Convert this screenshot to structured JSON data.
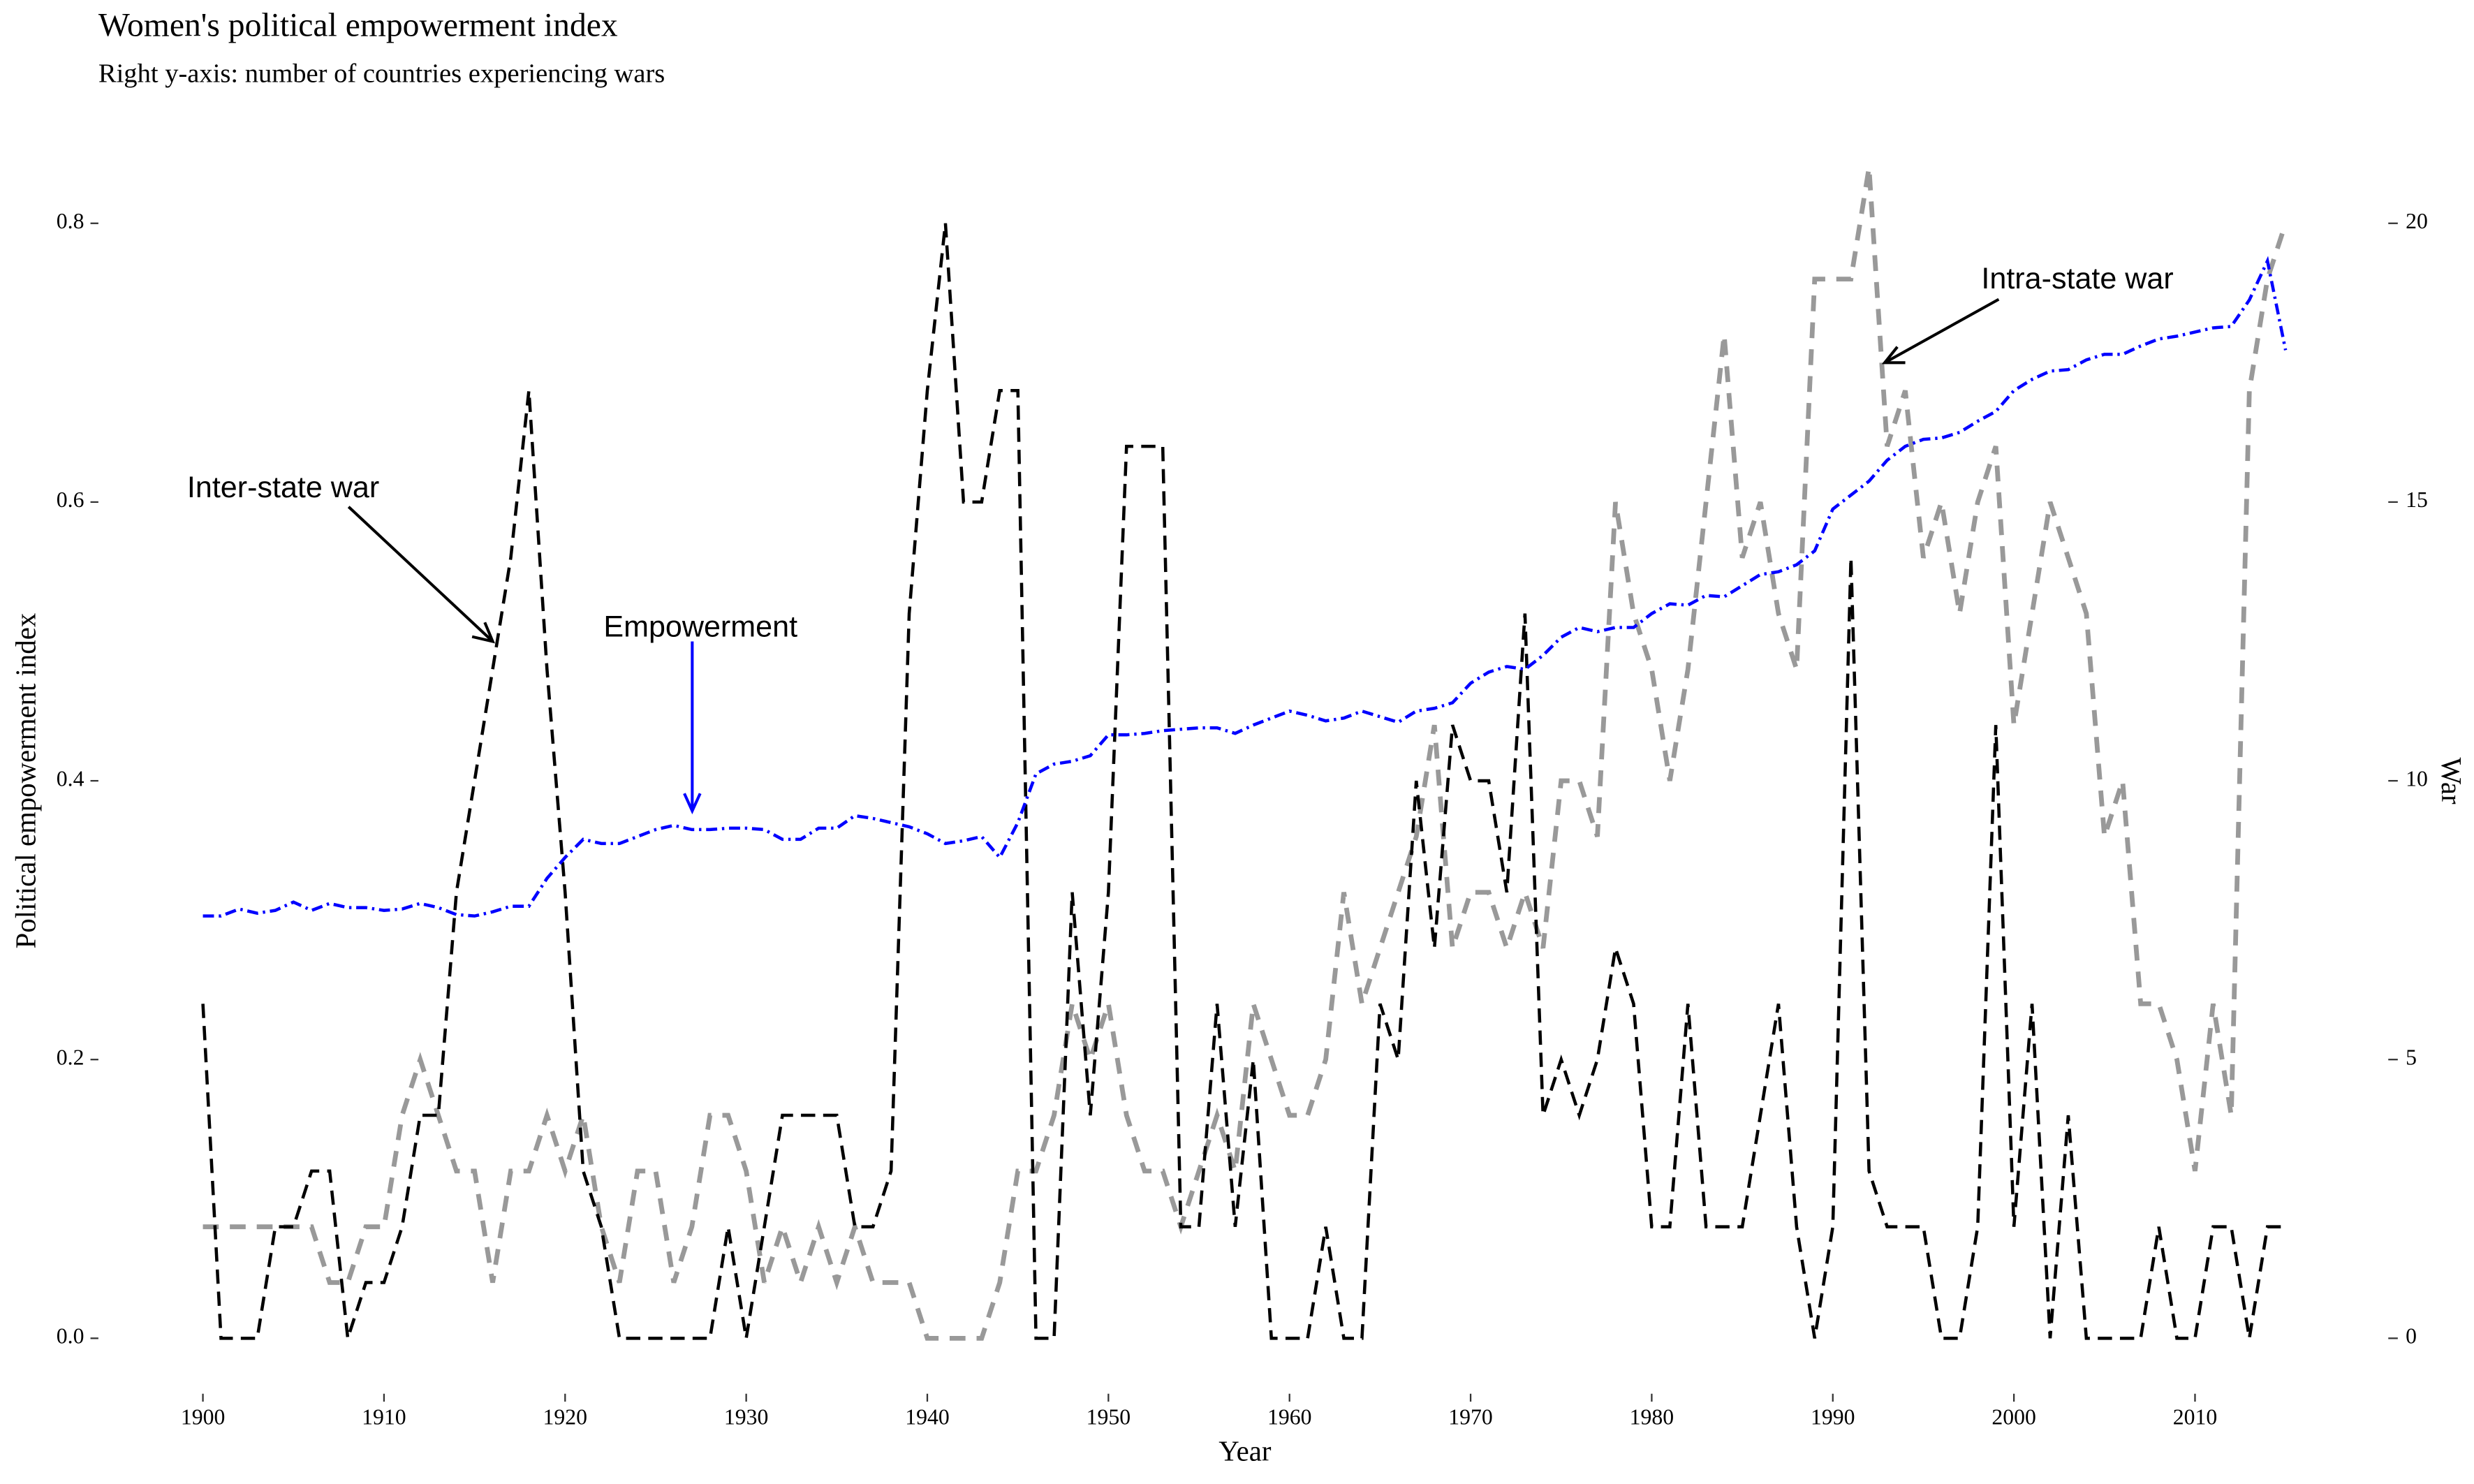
{
  "chart_data": {
    "type": "line",
    "title": "Women's political empowerment index",
    "subtitle": "Right y-axis: number of countries experiencing wars",
    "x_label": "Year",
    "y_label": "Political empowerment index",
    "y2_label": "War",
    "x": [
      1900,
      1901,
      1902,
      1903,
      1904,
      1905,
      1906,
      1907,
      1908,
      1909,
      1910,
      1911,
      1912,
      1913,
      1914,
      1915,
      1916,
      1917,
      1918,
      1919,
      1920,
      1921,
      1922,
      1923,
      1924,
      1925,
      1926,
      1927,
      1928,
      1929,
      1930,
      1931,
      1932,
      1933,
      1934,
      1935,
      1936,
      1937,
      1938,
      1939,
      1940,
      1941,
      1942,
      1943,
      1944,
      1945,
      1946,
      1947,
      1948,
      1949,
      1950,
      1951,
      1952,
      1953,
      1954,
      1955,
      1956,
      1957,
      1958,
      1959,
      1960,
      1961,
      1962,
      1963,
      1964,
      1965,
      1966,
      1967,
      1968,
      1969,
      1970,
      1971,
      1972,
      1973,
      1974,
      1975,
      1976,
      1977,
      1978,
      1979,
      1980,
      1981,
      1982,
      1983,
      1984,
      1985,
      1986,
      1987,
      1988,
      1989,
      1990,
      1991,
      1992,
      1993,
      1994,
      1995,
      1996,
      1997,
      1998,
      1999,
      2000,
      2001,
      2002,
      2003,
      2004,
      2005,
      2006,
      2007,
      2008,
      2009,
      2010,
      2011,
      2012,
      2013,
      2014,
      2015
    ],
    "xlim": [
      1900,
      2015
    ],
    "xticks": [
      1900,
      1910,
      1920,
      1930,
      1940,
      1950,
      1960,
      1970,
      1980,
      1990,
      2000,
      2010
    ],
    "ylim": [
      0,
      0.8
    ],
    "yticks": [
      {
        "value": 0,
        "label": "0.0"
      },
      0.2,
      0.4,
      0.6,
      0.8
    ],
    "y2lim": [
      0,
      20
    ],
    "y2ticks": [
      0,
      5,
      10,
      15,
      20
    ],
    "series": [
      {
        "name": "Inter-state war",
        "color": "#000000",
        "axis": "y2",
        "values": [
          6,
          0,
          0,
          0,
          2,
          2,
          3,
          3,
          0,
          1,
          1,
          2,
          4,
          4,
          8,
          10,
          12,
          14,
          17,
          12,
          8,
          3,
          2,
          0,
          0,
          0,
          0,
          0,
          0,
          2,
          0,
          2,
          4,
          4,
          4,
          4,
          2,
          2,
          3,
          13,
          17,
          20,
          15,
          15,
          17,
          17,
          0,
          0,
          8,
          4,
          8,
          16,
          16,
          16,
          2,
          2,
          6,
          2,
          5,
          0,
          0,
          0,
          2,
          0,
          0,
          6,
          5,
          10,
          7,
          11,
          10,
          10,
          8,
          13,
          4,
          5,
          4,
          5,
          7,
          6,
          2,
          2,
          6,
          2,
          2,
          2,
          4,
          6,
          2,
          0,
          2,
          14,
          3,
          2,
          2,
          2,
          0,
          0,
          2,
          11,
          2,
          6,
          0,
          4,
          0,
          0,
          0,
          0,
          2,
          0,
          0,
          2,
          2,
          0,
          2,
          2
        ]
      },
      {
        "name": "Intra-state war",
        "color": "#999999",
        "axis": "y2",
        "values": [
          2,
          2,
          2,
          2,
          2,
          2,
          2,
          1,
          1,
          2,
          2,
          4,
          5,
          4,
          3,
          3,
          1,
          3,
          3,
          4,
          3,
          4,
          2,
          1,
          3,
          3,
          1,
          2,
          4,
          4,
          3,
          1,
          2,
          1,
          2,
          1,
          2,
          1,
          1,
          1,
          0,
          0,
          0,
          0,
          1,
          3,
          3,
          4,
          6,
          5,
          6,
          4,
          3,
          3,
          2,
          3,
          4,
          3,
          6,
          5,
          4,
          4,
          5,
          8,
          6,
          7,
          8,
          9,
          11,
          7,
          8,
          8,
          7,
          8,
          7,
          10,
          10,
          9,
          15,
          13,
          12,
          10,
          12,
          15,
          18,
          14,
          15,
          13,
          12,
          19,
          19,
          19,
          21,
          16,
          17,
          14,
          15,
          13,
          15,
          16,
          11,
          13,
          15,
          14,
          13,
          9,
          10,
          6,
          6,
          5,
          3,
          6,
          4,
          17,
          19,
          20
        ]
      },
      {
        "name": "Empowerment",
        "color": "#0000ff",
        "values": [
          0.303,
          0.303,
          0.308,
          0.305,
          0.307,
          0.313,
          0.307,
          0.312,
          0.309,
          0.309,
          0.307,
          0.308,
          0.312,
          0.309,
          0.304,
          0.303,
          0.306,
          0.31,
          0.31,
          0.33,
          0.345,
          0.358,
          0.355,
          0.355,
          0.36,
          0.365,
          0.368,
          0.365,
          0.365,
          0.366,
          0.366,
          0.365,
          0.358,
          0.358,
          0.366,
          0.366,
          0.375,
          0.373,
          0.37,
          0.367,
          0.362,
          0.355,
          0.357,
          0.36,
          0.345,
          0.37,
          0.405,
          0.412,
          0.414,
          0.418,
          0.433,
          0.433,
          0.434,
          0.436,
          0.437,
          0.438,
          0.438,
          0.434,
          0.44,
          0.445,
          0.45,
          0.447,
          0.443,
          0.445,
          0.45,
          0.446,
          0.442,
          0.45,
          0.452,
          0.456,
          0.47,
          0.478,
          0.482,
          0.48,
          0.49,
          0.503,
          0.51,
          0.507,
          0.51,
          0.51,
          0.52,
          0.527,
          0.526,
          0.533,
          0.532,
          0.54,
          0.548,
          0.55,
          0.555,
          0.565,
          0.595,
          0.605,
          0.615,
          0.63,
          0.64,
          0.645,
          0.646,
          0.65,
          0.658,
          0.665,
          0.68,
          0.688,
          0.694,
          0.695,
          0.702,
          0.706,
          0.706,
          0.712,
          0.717,
          0.719,
          0.722,
          0.725,
          0.726,
          0.745,
          0.773,
          0.709
        ]
      }
    ]
  }
}
